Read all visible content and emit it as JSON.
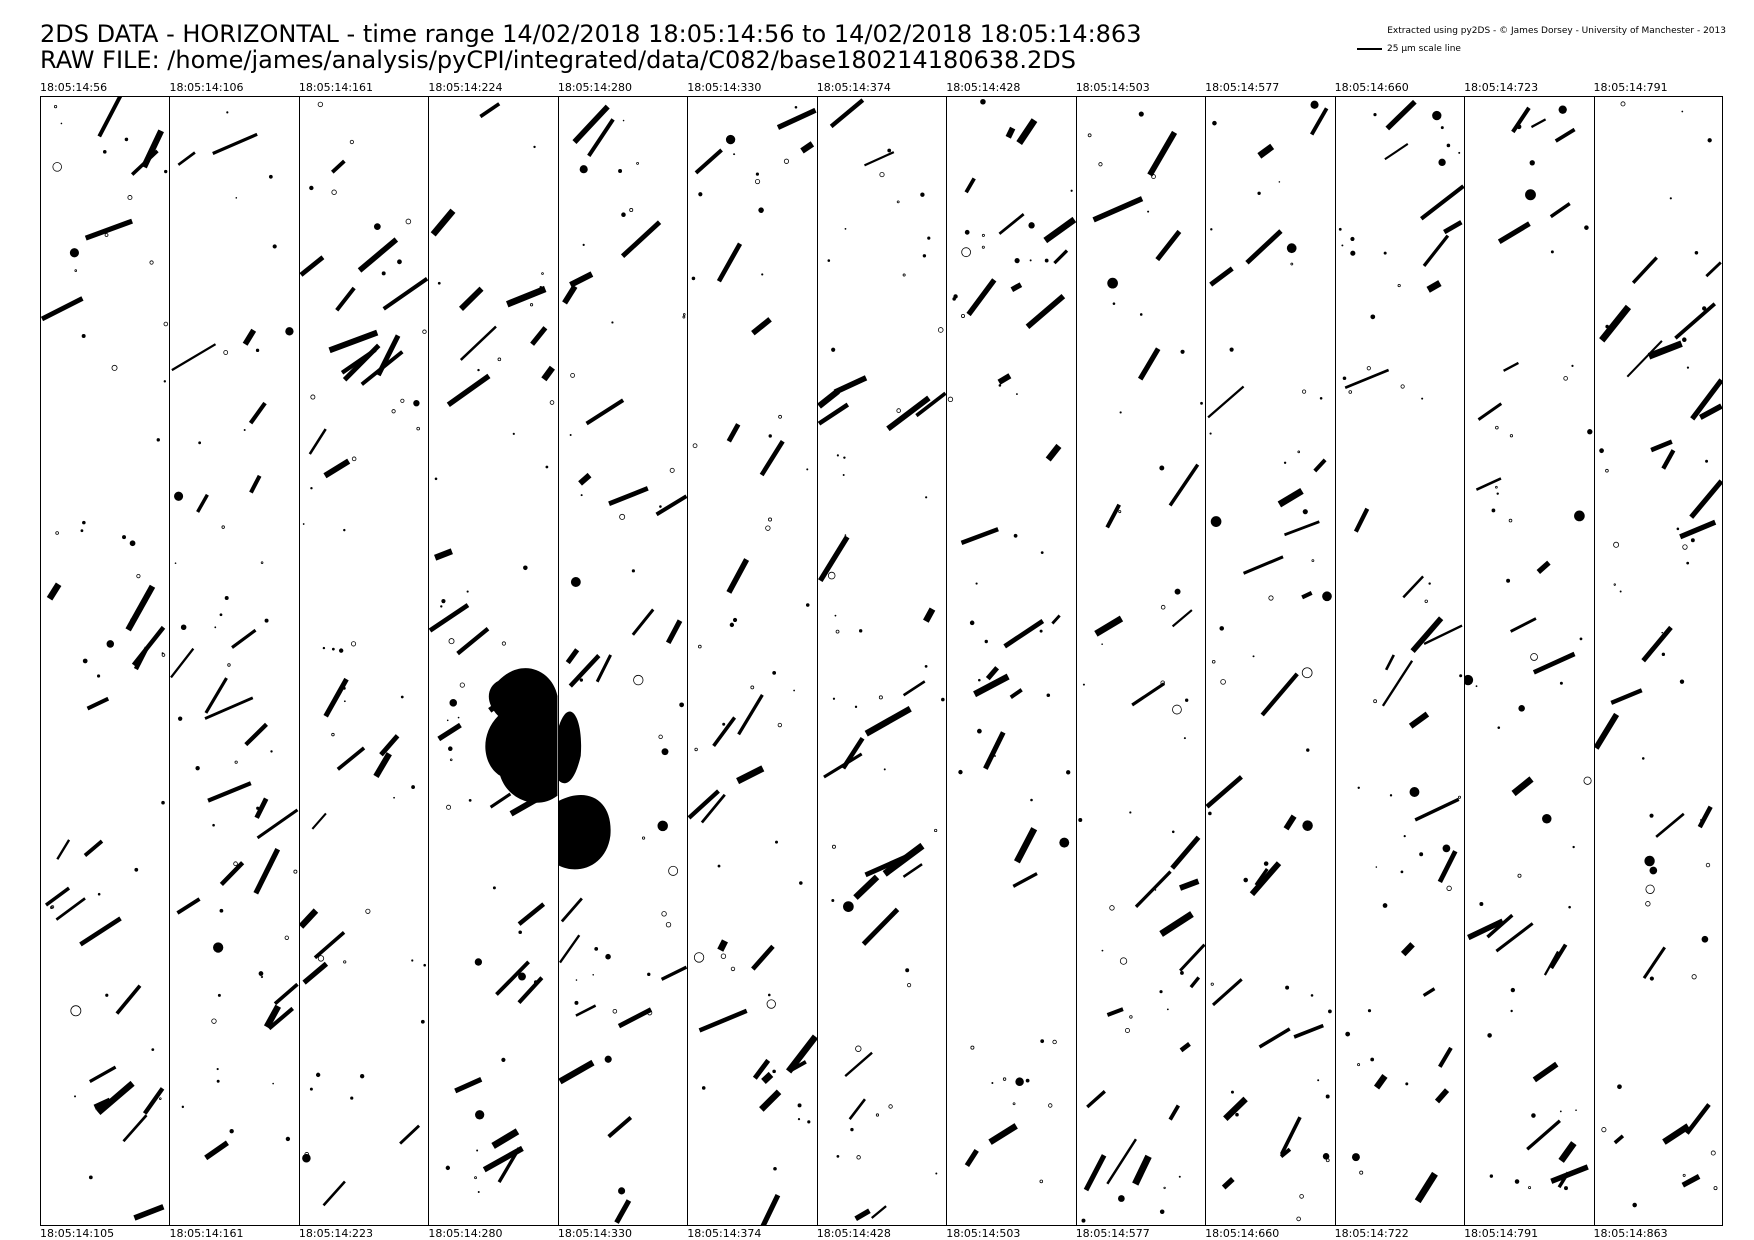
{
  "header": {
    "title_line_1": "2DS DATA - HORIZONTAL - time range 14/02/2018 18:05:14:56 to 14/02/2018 18:05:14:863",
    "title_line_2": "RAW FILE: /home/james/analysis/pyCPI/integrated/data/C082/base180214180638.2DS",
    "credit": "Extracted using py2DS - © James Dorsey - University of Manchester - 2013",
    "scale_label": "25 µm scale line"
  },
  "strips": [
    {
      "start": "18:05:14:56",
      "end": "18:05:14:105"
    },
    {
      "start": "18:05:14:106",
      "end": "18:05:14:161"
    },
    {
      "start": "18:05:14:161",
      "end": "18:05:14:223"
    },
    {
      "start": "18:05:14:224",
      "end": "18:05:14:280"
    },
    {
      "start": "18:05:14:280",
      "end": "18:05:14:330"
    },
    {
      "start": "18:05:14:330",
      "end": "18:05:14:374"
    },
    {
      "start": "18:05:14:374",
      "end": "18:05:14:428"
    },
    {
      "start": "18:05:14:428",
      "end": "18:05:14:503"
    },
    {
      "start": "18:05:14:503",
      "end": "18:05:14:577"
    },
    {
      "start": "18:05:14:577",
      "end": "18:05:14:660"
    },
    {
      "start": "18:05:14:660",
      "end": "18:05:14:722"
    },
    {
      "start": "18:05:14:723",
      "end": "18:05:14:791"
    },
    {
      "start": "18:05:14:791",
      "end": "18:05:14:863"
    }
  ],
  "colors": {
    "ink": "#000000",
    "background": "#ffffff"
  }
}
